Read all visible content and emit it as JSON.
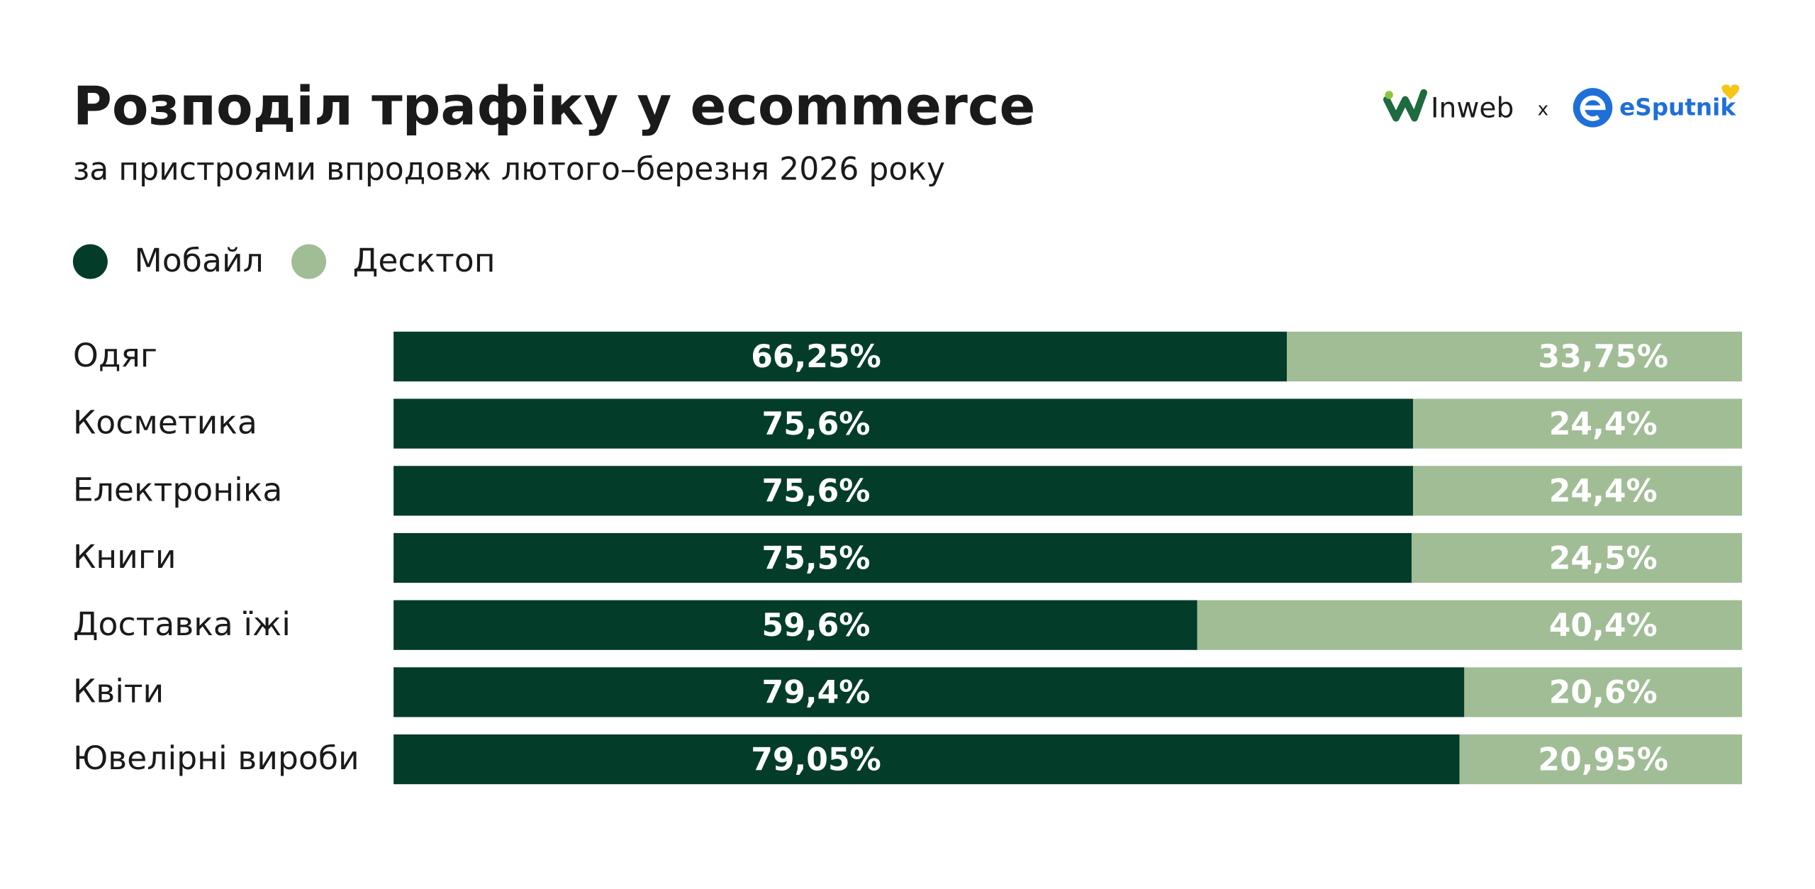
{
  "chart_data": {
    "type": "bar",
    "orientation": "horizontal",
    "stacked": true,
    "title": "Розподіл трафіку у ecommerce",
    "subtitle": "за пристроями впродовж лютого–березня 2026 року",
    "logos": [
      "Inweb",
      "x",
      "eSputnik"
    ],
    "categories": [
      "Одяг",
      "Косметика",
      "Електроніка",
      "Книги",
      "Доставка їжі",
      "Квіти",
      "Ювелірні вироби"
    ],
    "xlim": [
      0,
      100
    ],
    "legend": "top-left",
    "series": [
      {
        "name": "Мобайл",
        "color": "#033d2a",
        "values": [
          66.25,
          75.6,
          75.6,
          75.5,
          59.6,
          79.4,
          79.05
        ],
        "value_labels": [
          "66,25%",
          "75,6%",
          "75,6%",
          "75,5%",
          "59,6%",
          "79,4%",
          "79,05%"
        ]
      },
      {
        "name": "Десктоп",
        "color": "#a0bd95",
        "values": [
          33.75,
          24.4,
          24.4,
          24.5,
          40.4,
          20.6,
          20.95
        ],
        "value_labels": [
          "33,75%",
          "24,4%",
          "24,4%",
          "24,5%",
          "40,4%",
          "20,6%",
          "20,95%"
        ]
      }
    ]
  }
}
